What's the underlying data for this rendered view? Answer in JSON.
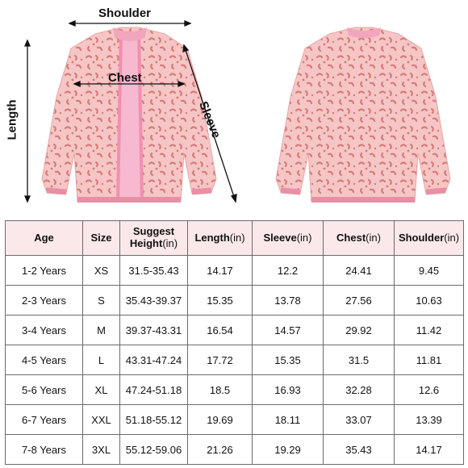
{
  "illustration": {
    "labels": {
      "shoulder": "Shoulder",
      "chest": "Chest",
      "length": "Length",
      "sleeve": "Sleeve"
    },
    "colors": {
      "fabric": "#f5c6c5",
      "spots": "#d77b78",
      "zipper_lining": "#f28fb1",
      "trim": "#e98fa5"
    }
  },
  "size_table": {
    "headers": [
      {
        "main": "Age",
        "unit": ""
      },
      {
        "main": "Size",
        "unit": ""
      },
      {
        "main": "Suggest",
        "main2": "Height",
        "unit": "(in)"
      },
      {
        "main": "Length",
        "unit": "(in)"
      },
      {
        "main": "Sleeve",
        "unit": "(in)"
      },
      {
        "main": "Chest",
        "unit": "(in)"
      },
      {
        "main": "Shoulder",
        "unit": "(in)"
      }
    ],
    "rows": [
      [
        "1-2 Years",
        "XS",
        "31.5-35.43",
        "14.17",
        "12.2",
        "24.41",
        "9.45"
      ],
      [
        "2-3 Years",
        "S",
        "35.43-39.37",
        "15.35",
        "13.78",
        "27.56",
        "10.63"
      ],
      [
        "3-4 Years",
        "M",
        "39.37-43.31",
        "16.54",
        "14.57",
        "29.92",
        "11.42"
      ],
      [
        "4-5 Years",
        "L",
        "43.31-47.24",
        "17.72",
        "15.35",
        "31.5",
        "11.81"
      ],
      [
        "5-6 Years",
        "XL",
        "47.24-51.18",
        "18.5",
        "16.93",
        "32.28",
        "12.6"
      ],
      [
        "6-7 Years",
        "XXL",
        "51.18-55.12",
        "19.69",
        "18.11",
        "33.07",
        "13.39"
      ],
      [
        "7-8 Years",
        "3XL",
        "55.12-59.06",
        "21.26",
        "19.29",
        "35.43",
        "14.17"
      ]
    ],
    "header_bg": "#fbe8ea",
    "border_color": "#6b6b6b"
  }
}
